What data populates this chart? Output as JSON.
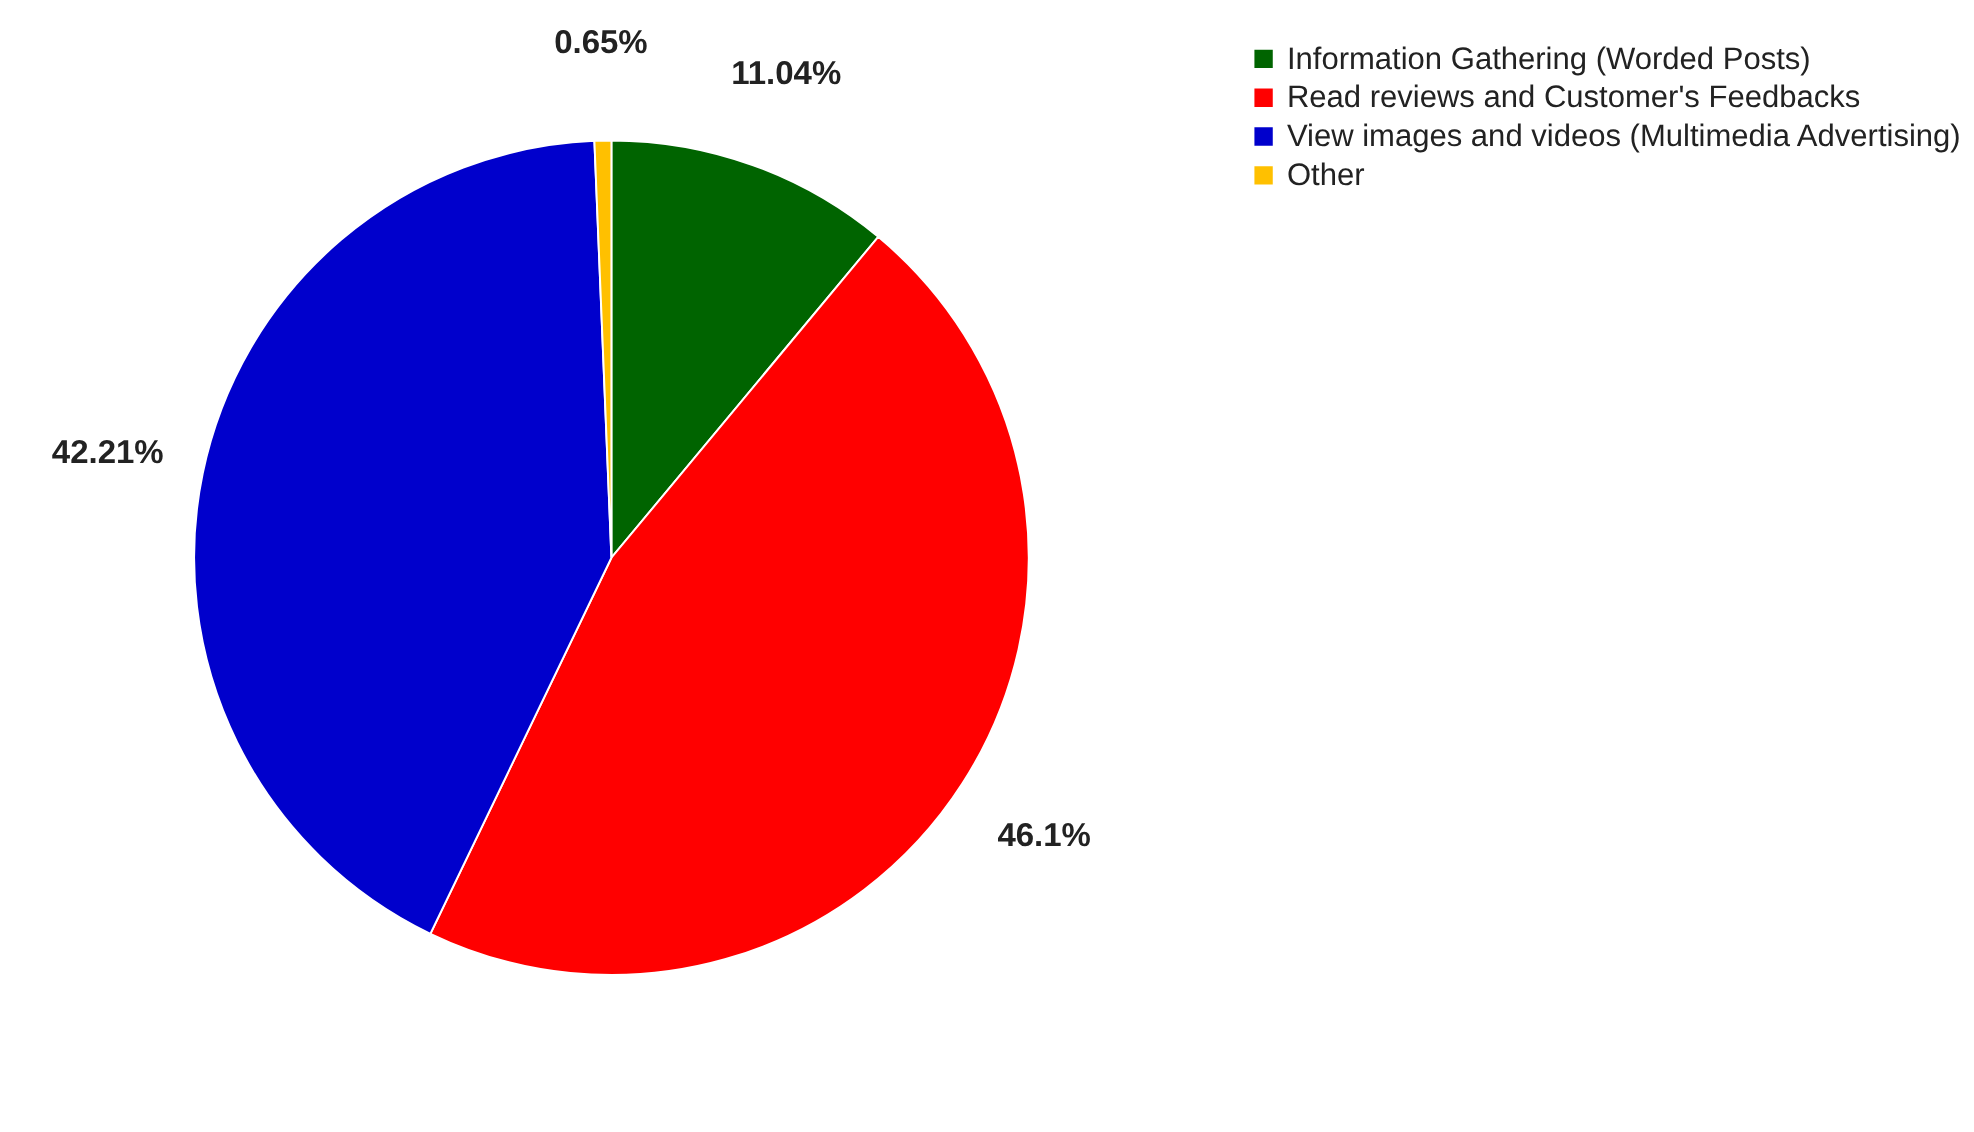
{
  "chart_data": {
    "type": "pie",
    "categories": [
      "Information Gathering (Worded Posts)",
      "Read reviews and Customer's Feedbacks",
      "View images and videos (Multimedia Advertising)",
      "Other"
    ],
    "values": [
      11.04,
      46.1,
      42.21,
      0.65
    ],
    "colors": [
      "#006400",
      "#ff0000",
      "#0000cc",
      "#ffc000"
    ],
    "value_labels": [
      "11.04%",
      "46.1%",
      "42.21%",
      "0.65%"
    ],
    "legend": "right"
  }
}
